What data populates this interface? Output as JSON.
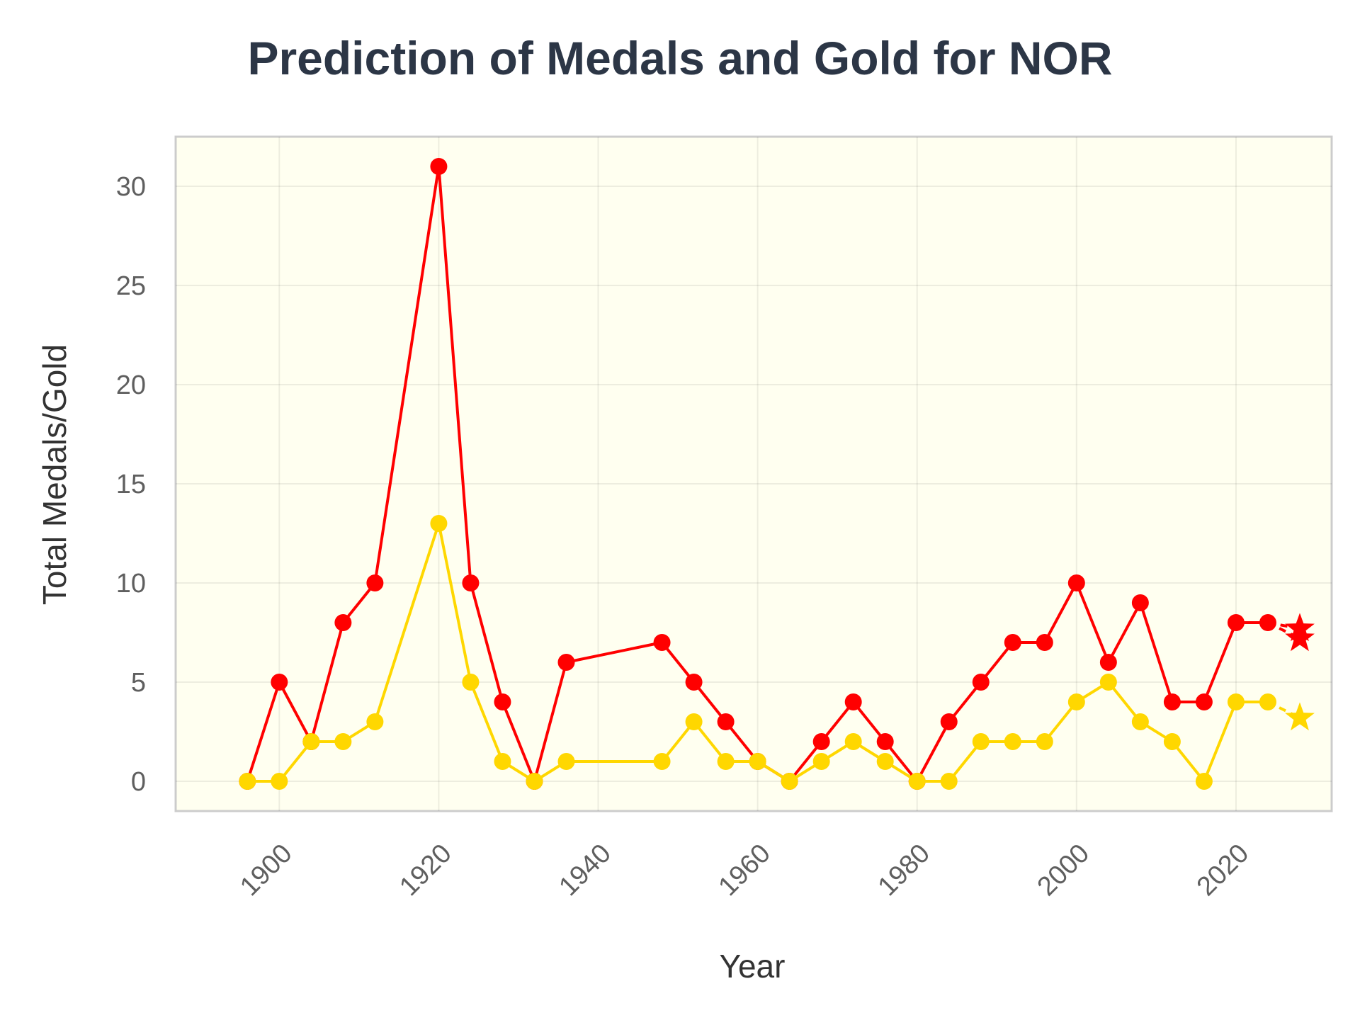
{
  "chart_data": {
    "type": "line",
    "title": "Prediction of Medals and Gold for NOR",
    "xlabel": "Year",
    "ylabel": "Total Medals/Gold",
    "xlim": [
      1887,
      2032
    ],
    "ylim": [
      -1.5,
      32.5
    ],
    "x_ticks": [
      1900,
      1920,
      1940,
      1960,
      1980,
      2000,
      2020
    ],
    "y_ticks": [
      0,
      5,
      10,
      15,
      20,
      25,
      30
    ],
    "grid": true,
    "background_color": "#fffff0",
    "series": [
      {
        "color": "#ff0000",
        "x": [
          1896,
          1900,
          1904,
          1908,
          1912,
          1920,
          1924,
          1928,
          1932,
          1936,
          1948,
          1952,
          1956,
          1960,
          1964,
          1968,
          1972,
          1976,
          1980,
          1984,
          1988,
          1992,
          1996,
          2000,
          2004,
          2008,
          2012,
          2016,
          2020,
          2024
        ],
        "y": [
          0,
          5,
          2,
          8,
          10,
          31,
          10,
          4,
          0,
          6,
          7,
          5,
          3,
          1,
          0,
          2,
          4,
          2,
          0,
          3,
          5,
          7,
          7,
          10,
          6,
          9,
          4,
          4,
          8,
          8
        ],
        "prediction": [
          {
            "x": 2028,
            "y": 7.7
          },
          {
            "x": 2028,
            "y": 7.2
          }
        ]
      },
      {
        "color": "#ffd700",
        "x": [
          1896,
          1900,
          1904,
          1908,
          1912,
          1920,
          1924,
          1928,
          1932,
          1936,
          1948,
          1952,
          1956,
          1960,
          1964,
          1968,
          1972,
          1976,
          1980,
          1984,
          1988,
          1992,
          1996,
          2000,
          2004,
          2008,
          2012,
          2016,
          2020,
          2024
        ],
        "y": [
          0,
          0,
          2,
          2,
          3,
          13,
          5,
          1,
          0,
          1,
          1,
          3,
          1,
          1,
          0,
          1,
          2,
          1,
          0,
          0,
          2,
          2,
          2,
          4,
          5,
          3,
          2,
          0,
          4,
          4
        ],
        "prediction": [
          {
            "x": 2028,
            "y": 3.2
          }
        ]
      }
    ]
  }
}
